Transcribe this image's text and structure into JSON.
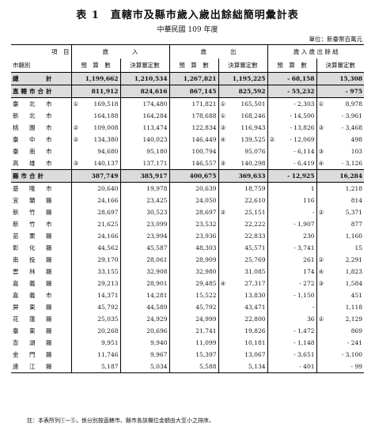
{
  "header": {
    "title": "表 1　直轄市及縣市歲入歲出餘絀簡明彙計表",
    "subtitle": "中華民國 109 年度",
    "unit": "單位：新臺幣百萬元"
  },
  "columns": {
    "item": "項　目",
    "region": "市縣別",
    "revenue": "歲　　　　入",
    "expenditure": "歲　　　　出",
    "balance": "歲 入 歲 出 餘 絀",
    "budget": "預　算　數",
    "final": "決算審定數"
  },
  "rows": [
    {
      "name": "總　　　計",
      "type": "total",
      "c1": "",
      "rb": "1,199,662",
      "rf": "1,210,534",
      "eb": "1,267,821",
      "ef": "1,195,225",
      "bb": "- 68,158",
      "c3": "",
      "bf": "15,308"
    },
    {
      "name": "直轄市合計",
      "type": "group",
      "c1": "",
      "rb": "811,912",
      "rf": "824,616",
      "eb": "867,145",
      "ef": "825,592",
      "bb": "- 55,232",
      "c3": "",
      "bf": "- 975"
    },
    {
      "name": "臺　北　市",
      "c1": "①",
      "rb": "169,518",
      "rf": "174,480",
      "eb": "171,821",
      "c2": "①",
      "ef": "165,501",
      "bb": "- 2,303",
      "c3": "①",
      "bf": "8,978"
    },
    {
      "name": "新　北　市",
      "c1": "",
      "rb": "164,188",
      "rf": "164,284",
      "eb": "178,688",
      "c2": "①",
      "ef": "168,246",
      "bb": "- 14,500",
      "c3": "",
      "bf": "- 3,961"
    },
    {
      "name": "桃　園　市",
      "c1": "②",
      "rb": "109,008",
      "rf": "113,474",
      "eb": "122,834",
      "c2": "③",
      "ef": "116,943",
      "bb": "- 13,826",
      "c3": "③",
      "bf": "- 3,468"
    },
    {
      "name": "臺　中　市",
      "c1": "②",
      "rb": "134,380",
      "rf": "140,023",
      "eb": "146,449",
      "c2": "④",
      "ef": "139,525",
      "bb": "- 12,069",
      "c2b": "②",
      "bf": "498"
    },
    {
      "name": "臺　南　市",
      "c1": "",
      "rb": "94,680",
      "rf": "95,180",
      "eb": "100,794",
      "c2": "",
      "ef": "95,076",
      "bb": "- 6,114",
      "c3": "③",
      "bf": "103"
    },
    {
      "name": "高　雄　市",
      "c1": "③",
      "rb": "140,137",
      "rf": "137,171",
      "eb": "146,557",
      "c2": "③",
      "ef": "140,298",
      "bb": "- 6,419",
      "c3": "④",
      "bf": "- 3,126"
    },
    {
      "name": "縣市合計",
      "type": "group",
      "c1": "",
      "rb": "387,749",
      "rf": "385,917",
      "eb": "400,675",
      "ef": "369,633",
      "bb": "- 12,925",
      "c3": "",
      "bf": "16,284"
    },
    {
      "name": "基　隆　市",
      "c1": "",
      "rb": "20,640",
      "rf": "19,978",
      "eb": "20,639",
      "ef": "18,759",
      "bb": "1",
      "c3": "",
      "bf": "1,218"
    },
    {
      "name": "宜　蘭　縣",
      "c1": "",
      "rb": "24,166",
      "rf": "23,425",
      "eb": "24,050",
      "ef": "22,610",
      "bb": "116",
      "c3": "",
      "bf": "814"
    },
    {
      "name": "新　竹　縣",
      "c1": "",
      "rb": "28,697",
      "rf": "30,523",
      "eb": "28,697",
      "c2": "②",
      "ef": "25,151",
      "bb": "-",
      "c3": "②",
      "bf": "5,371"
    },
    {
      "name": "新　竹　市",
      "c1": "",
      "rb": "21,625",
      "rf": "23,099",
      "eb": "23,532",
      "ef": "22,222",
      "bb": "- 1,907",
      "c3": "",
      "bf": "877"
    },
    {
      "name": "苗　栗　縣",
      "c1": "",
      "rb": "24,166",
      "rf": "23,994",
      "eb": "23,936",
      "ef": "22,833",
      "bb": "230",
      "c3": "",
      "bf": "1,160"
    },
    {
      "name": "彰　化　縣",
      "c1": "",
      "rb": "44,562",
      "rf": "45,587",
      "eb": "48,303",
      "ef": "45,571",
      "bb": "- 3,741",
      "c3": "",
      "bf": "15"
    },
    {
      "name": "南　投　縣",
      "c1": "",
      "rb": "29,170",
      "rf": "28,061",
      "eb": "28,909",
      "ef": "25,769",
      "bb": "261",
      "c3": "②",
      "bf": "2,291"
    },
    {
      "name": "雲　林　縣",
      "c1": "",
      "rb": "33,155",
      "rf": "32,908",
      "eb": "32,980",
      "ef": "31,085",
      "bb": "174",
      "c3": "④",
      "bf": "1,823"
    },
    {
      "name": "嘉　義　縣",
      "c1": "",
      "rb": "29,213",
      "rf": "28,901",
      "eb": "29,485",
      "c2": "④",
      "ef": "27,317",
      "bb": "- 272",
      "c3": "③",
      "bf": "1,584"
    },
    {
      "name": "嘉　義　市",
      "c1": "",
      "rb": "14,371",
      "rf": "14,281",
      "eb": "15,522",
      "ef": "13,830",
      "bb": "- 1,150",
      "c3": "",
      "bf": "451"
    },
    {
      "name": "屏　東　縣",
      "c1": "",
      "rb": "45,792",
      "rf": "44,589",
      "eb": "45,792",
      "ef": "43,471",
      "bb": "-",
      "c3": "",
      "bf": "1,118"
    },
    {
      "name": "花　蓮　縣",
      "c1": "",
      "rb": "25,035",
      "rf": "24,929",
      "eb": "24,999",
      "ef": "22,800",
      "bb": "36",
      "c3": "②",
      "bf": "2,129"
    },
    {
      "name": "臺　東　縣",
      "c1": "",
      "rb": "20,268",
      "rf": "20,696",
      "eb": "21,741",
      "ef": "19,826",
      "bb": "- 1,472",
      "c3": "",
      "bf": "869"
    },
    {
      "name": "澎　湖　縣",
      "c1": "",
      "rb": "9,951",
      "rf": "9,940",
      "eb": "11,099",
      "ef": "10,181",
      "bb": "- 1,148",
      "c3": "",
      "bf": "- 241"
    },
    {
      "name": "金　門　縣",
      "c1": "",
      "rb": "11,746",
      "rf": "9,967",
      "eb": "15,397",
      "ef": "13,067",
      "bb": "- 3,651",
      "c3": "",
      "bf": "- 3,100"
    },
    {
      "name": "連　江　縣",
      "c1": "",
      "rb": "5,187",
      "rf": "5,034",
      "eb": "5,588",
      "ef": "5,134",
      "bb": "- 401",
      "c3": "",
      "bf": "- 99"
    }
  ],
  "footnote": "註：本表所列①~⑤，係分別按直轄市、縣市各該欄位金額由大至小之排序。"
}
